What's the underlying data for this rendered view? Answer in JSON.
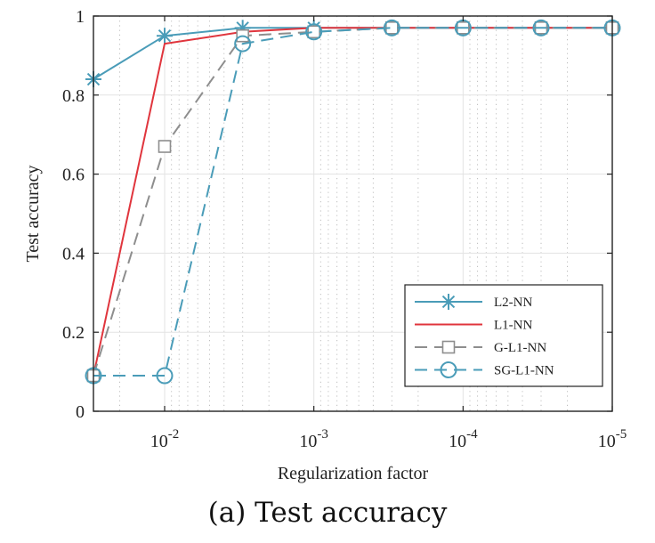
{
  "caption": "(a) Test accuracy",
  "chart_data": {
    "type": "line",
    "title": "",
    "xlabel": "Regularization factor",
    "ylabel": "Test accuracy",
    "x_scale": "log",
    "x_reversed": true,
    "xlim": [
      0.03,
      1e-05
    ],
    "ylim": [
      0,
      1
    ],
    "x": [
      0.03,
      0.01,
      0.003,
      0.001,
      0.0003,
      0.0001,
      3e-05,
      1e-05
    ],
    "x_ticks": [
      {
        "value": 0.01,
        "base": "10",
        "exp": "-2"
      },
      {
        "value": 0.001,
        "base": "10",
        "exp": "-3"
      },
      {
        "value": 0.0001,
        "base": "10",
        "exp": "-4"
      },
      {
        "value": 1e-05,
        "base": "10",
        "exp": "-5"
      }
    ],
    "y_ticks": [
      {
        "value": 0,
        "label": "0"
      },
      {
        "value": 0.2,
        "label": "0.2"
      },
      {
        "value": 0.4,
        "label": "0.4"
      },
      {
        "value": 0.6,
        "label": "0.6"
      },
      {
        "value": 0.8,
        "label": "0.8"
      },
      {
        "value": 1,
        "label": "1"
      }
    ],
    "grid": true,
    "legend_position": "bottom-right",
    "series": [
      {
        "name": "L2-NN",
        "color": "#4a9cb8",
        "dash": "solid",
        "marker": "asterisk",
        "values": [
          0.84,
          0.95,
          0.97,
          0.97,
          0.97,
          0.97,
          0.97,
          0.97
        ]
      },
      {
        "name": "L1-NN",
        "color": "#e0353d",
        "dash": "solid",
        "marker": "none",
        "values": [
          0.09,
          0.93,
          0.96,
          0.97,
          0.97,
          0.97,
          0.97,
          0.97
        ]
      },
      {
        "name": "G-L1-NN",
        "color": "#8e8e8e",
        "dash": "dashed",
        "marker": "square",
        "values": [
          0.09,
          0.67,
          0.95,
          0.96,
          0.97,
          0.97,
          0.97,
          0.97
        ]
      },
      {
        "name": "SG-L1-NN",
        "color": "#4a9cb8",
        "dash": "dashed",
        "marker": "circle",
        "values": [
          0.09,
          0.09,
          0.93,
          0.96,
          0.97,
          0.97,
          0.97,
          0.97
        ]
      }
    ]
  }
}
